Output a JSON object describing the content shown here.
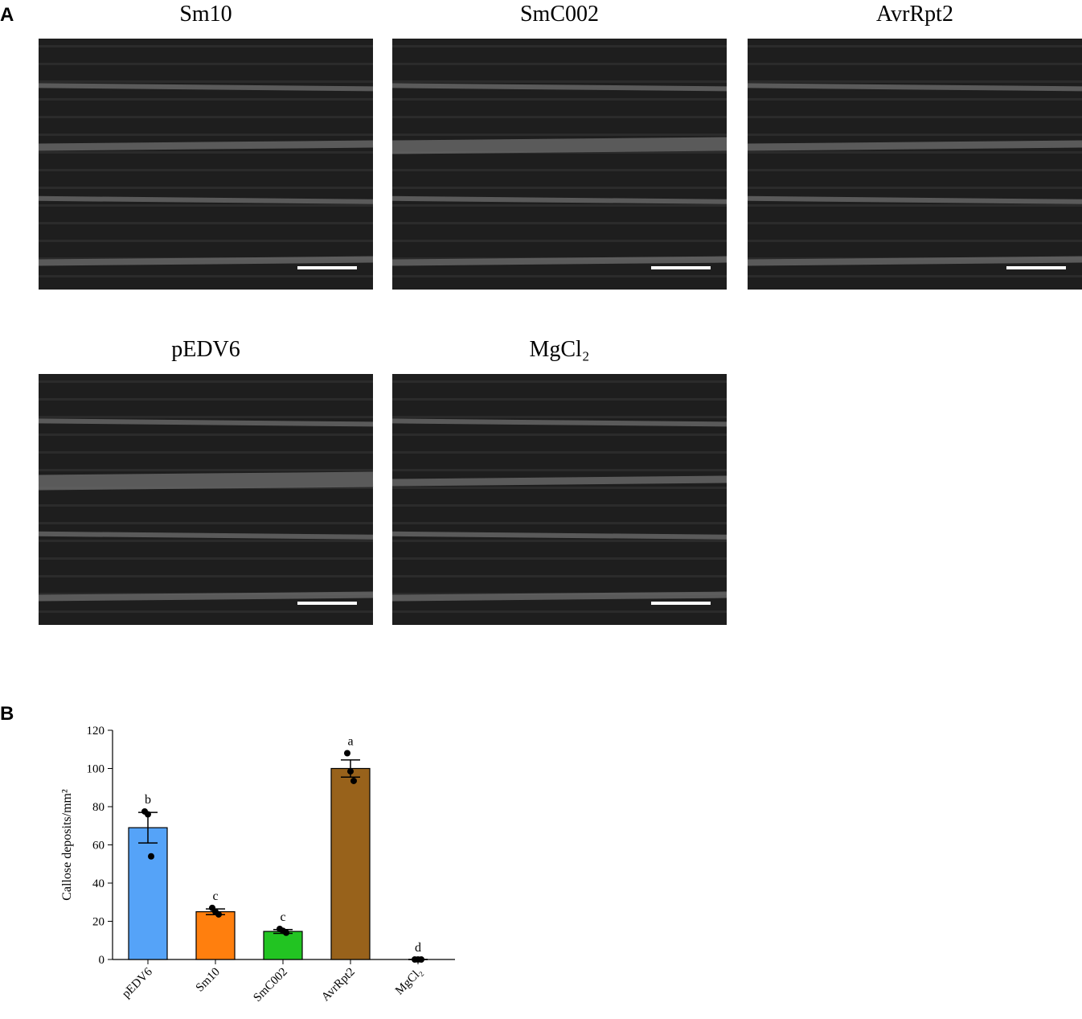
{
  "panel_a": {
    "label": "A",
    "images": [
      {
        "title": "Sm10"
      },
      {
        "title": "SmC002"
      },
      {
        "title": "AvrRpt2"
      },
      {
        "title": "pEDV6"
      },
      {
        "title": "MgCl₂"
      }
    ]
  },
  "chart_data": {
    "type": "bar",
    "panel_label": "B",
    "y_label": "Callose deposits/mm²",
    "categories": [
      "pEDV6",
      "Sm10",
      "SmC002",
      "AvrRpt2",
      "MgCl₂"
    ],
    "values": [
      69,
      25,
      14.7,
      100,
      0
    ],
    "errors": [
      8,
      1.5,
      1,
      4.5,
      0
    ],
    "points": [
      [
        77.5,
        76,
        54
      ],
      [
        27,
        25,
        23.6
      ],
      [
        16,
        15,
        14
      ],
      [
        108,
        98.5,
        93.5
      ],
      [
        0,
        0,
        0
      ]
    ],
    "letters": [
      "b",
      "c",
      "c",
      "a",
      "d"
    ],
    "colors": [
      "#55a3f8",
      "#ff7f0e",
      "#22c422",
      "#98621b",
      "#888888"
    ],
    "ylim": [
      0,
      120
    ],
    "yticks": [
      0,
      20,
      40,
      60,
      80,
      100,
      120
    ]
  }
}
